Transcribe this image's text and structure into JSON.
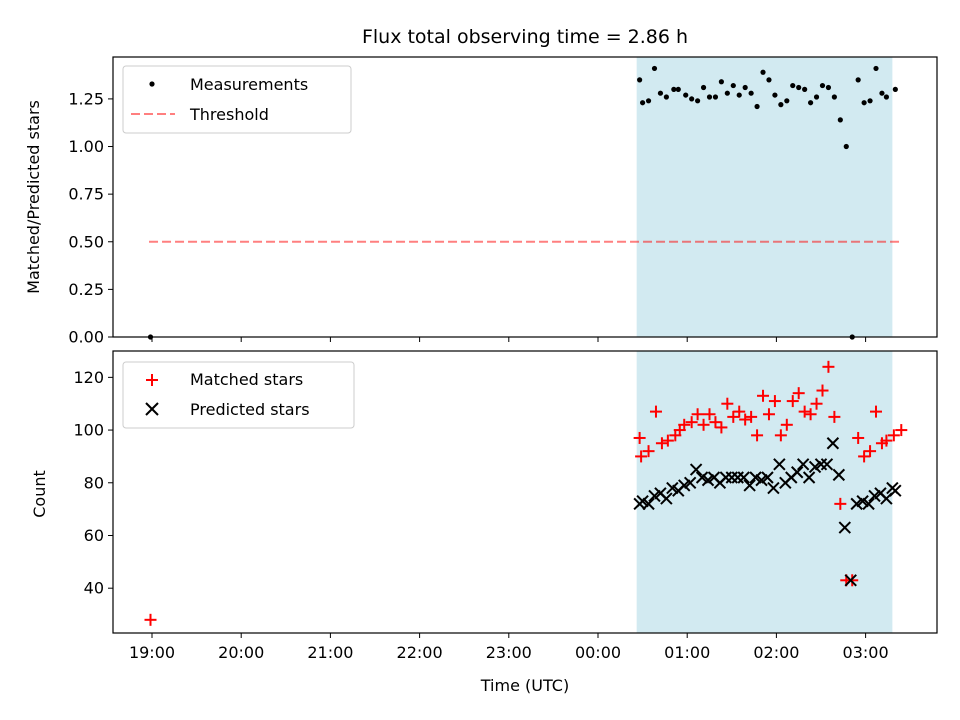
{
  "chart_data": [
    {
      "type": "scatter",
      "title": "Flux total observing time = 2.86 h",
      "xlabel": "",
      "ylabel": "Matched/Predicted stars",
      "ylim": [
        0,
        1.47
      ],
      "yticks": [
        "0.00",
        "0.25",
        "0.50",
        "0.75",
        "1.00",
        "1.25"
      ],
      "shaded_region": {
        "x_start": "00:26",
        "x_end": "03:18",
        "color": "#add8e6"
      },
      "threshold": {
        "name": "Threshold",
        "y": 0.5,
        "x_start": "18:58",
        "x_end": "03:25",
        "color": "#ff0000",
        "style": "dashed"
      },
      "legend_position": "top-left",
      "grid": false,
      "series": [
        {
          "name": "Measurements",
          "marker": "dot",
          "color": "#000000",
          "x": [
            "18:59",
            "00:28",
            "00:30",
            "00:34",
            "00:38",
            "00:42",
            "00:46",
            "00:51",
            "00:54",
            "00:59",
            "01:03",
            "01:07",
            "01:11",
            "01:15",
            "01:19",
            "01:23",
            "01:27",
            "01:31",
            "01:35",
            "01:39",
            "01:43",
            "01:47",
            "01:51",
            "01:55",
            "01:59",
            "02:03",
            "02:07",
            "02:11",
            "02:15",
            "02:19",
            "02:23",
            "02:27",
            "02:31",
            "02:35",
            "02:39",
            "02:43",
            "02:47",
            "02:51",
            "02:55",
            "02:59",
            "03:03",
            "03:07",
            "03:11",
            "03:14",
            "03:20"
          ],
          "y": [
            0.0,
            1.35,
            1.23,
            1.24,
            1.41,
            1.28,
            1.26,
            1.3,
            1.3,
            1.27,
            1.25,
            1.24,
            1.31,
            1.26,
            1.26,
            1.34,
            1.28,
            1.32,
            1.27,
            1.31,
            1.28,
            1.21,
            1.39,
            1.35,
            1.27,
            1.22,
            1.24,
            1.32,
            1.31,
            1.3,
            1.23,
            1.26,
            1.32,
            1.31,
            1.26,
            1.14,
            1.0,
            0.0,
            1.35,
            1.23,
            1.24,
            1.41,
            1.28,
            1.26,
            1.3
          ]
        }
      ]
    },
    {
      "type": "scatter",
      "title": "",
      "xlabel": "Time (UTC)",
      "ylabel": "Count",
      "ylim": [
        23,
        130
      ],
      "yticks": [
        "40",
        "60",
        "80",
        "100",
        "120"
      ],
      "xticks": [
        "19:00",
        "20:00",
        "21:00",
        "22:00",
        "23:00",
        "00:00",
        "01:00",
        "02:00",
        "03:00"
      ],
      "shaded_region": {
        "x_start": "00:26",
        "x_end": "03:18",
        "color": "#add8e6"
      },
      "legend_position": "top-left",
      "grid": false,
      "series": [
        {
          "name": "Matched stars",
          "marker": "plus",
          "color": "#ff0000",
          "x": [
            "18:59",
            "00:28",
            "00:29",
            "00:34",
            "00:39",
            "00:43",
            "00:47",
            "00:52",
            "00:55",
            "00:58",
            "01:03",
            "01:07",
            "01:11",
            "01:15",
            "01:19",
            "01:23",
            "01:27",
            "01:31",
            "01:35",
            "01:39",
            "01:43",
            "01:47",
            "01:51",
            "01:55",
            "01:59",
            "02:03",
            "02:07",
            "02:11",
            "02:15",
            "02:19",
            "02:23",
            "02:27",
            "02:31",
            "02:35",
            "02:39",
            "02:43",
            "02:47",
            "02:51",
            "02:55",
            "02:59",
            "03:03",
            "03:07",
            "03:11",
            "03:14",
            "03:19",
            "03:24"
          ],
          "y": [
            28,
            97,
            90,
            92,
            107,
            95,
            96,
            98,
            100,
            102,
            103,
            106,
            102,
            106,
            103,
            101,
            110,
            105,
            107,
            104,
            105,
            98,
            113,
            106,
            111,
            98,
            102,
            111,
            114,
            107,
            106,
            110,
            115,
            124,
            105,
            72,
            43,
            43,
            97,
            90,
            92,
            107,
            95,
            96,
            98,
            100
          ]
        },
        {
          "name": "Predicted stars",
          "marker": "x",
          "color": "#000000",
          "x": [
            "00:28",
            "00:30",
            "00:34",
            "00:38",
            "00:42",
            "00:46",
            "00:50",
            "00:54",
            "00:58",
            "01:02",
            "01:06",
            "01:10",
            "01:14",
            "01:18",
            "01:22",
            "01:26",
            "01:30",
            "01:34",
            "01:38",
            "01:42",
            "01:46",
            "01:50",
            "01:54",
            "01:58",
            "02:02",
            "02:06",
            "02:10",
            "02:14",
            "02:18",
            "02:22",
            "02:26",
            "02:30",
            "02:34",
            "02:38",
            "02:42",
            "02:46",
            "02:50",
            "02:54",
            "02:58",
            "03:02",
            "03:06",
            "03:10",
            "03:14",
            "03:18",
            "03:20"
          ],
          "y": [
            72,
            73,
            72,
            75,
            76,
            74,
            78,
            77,
            79,
            80,
            85,
            82,
            81,
            82,
            80,
            82,
            82,
            82,
            82,
            79,
            82,
            81,
            82,
            78,
            87,
            80,
            82,
            84,
            87,
            82,
            86,
            87,
            87,
            95,
            83,
            63,
            43,
            72,
            73,
            72,
            75,
            76,
            74,
            78,
            77
          ]
        }
      ]
    }
  ]
}
